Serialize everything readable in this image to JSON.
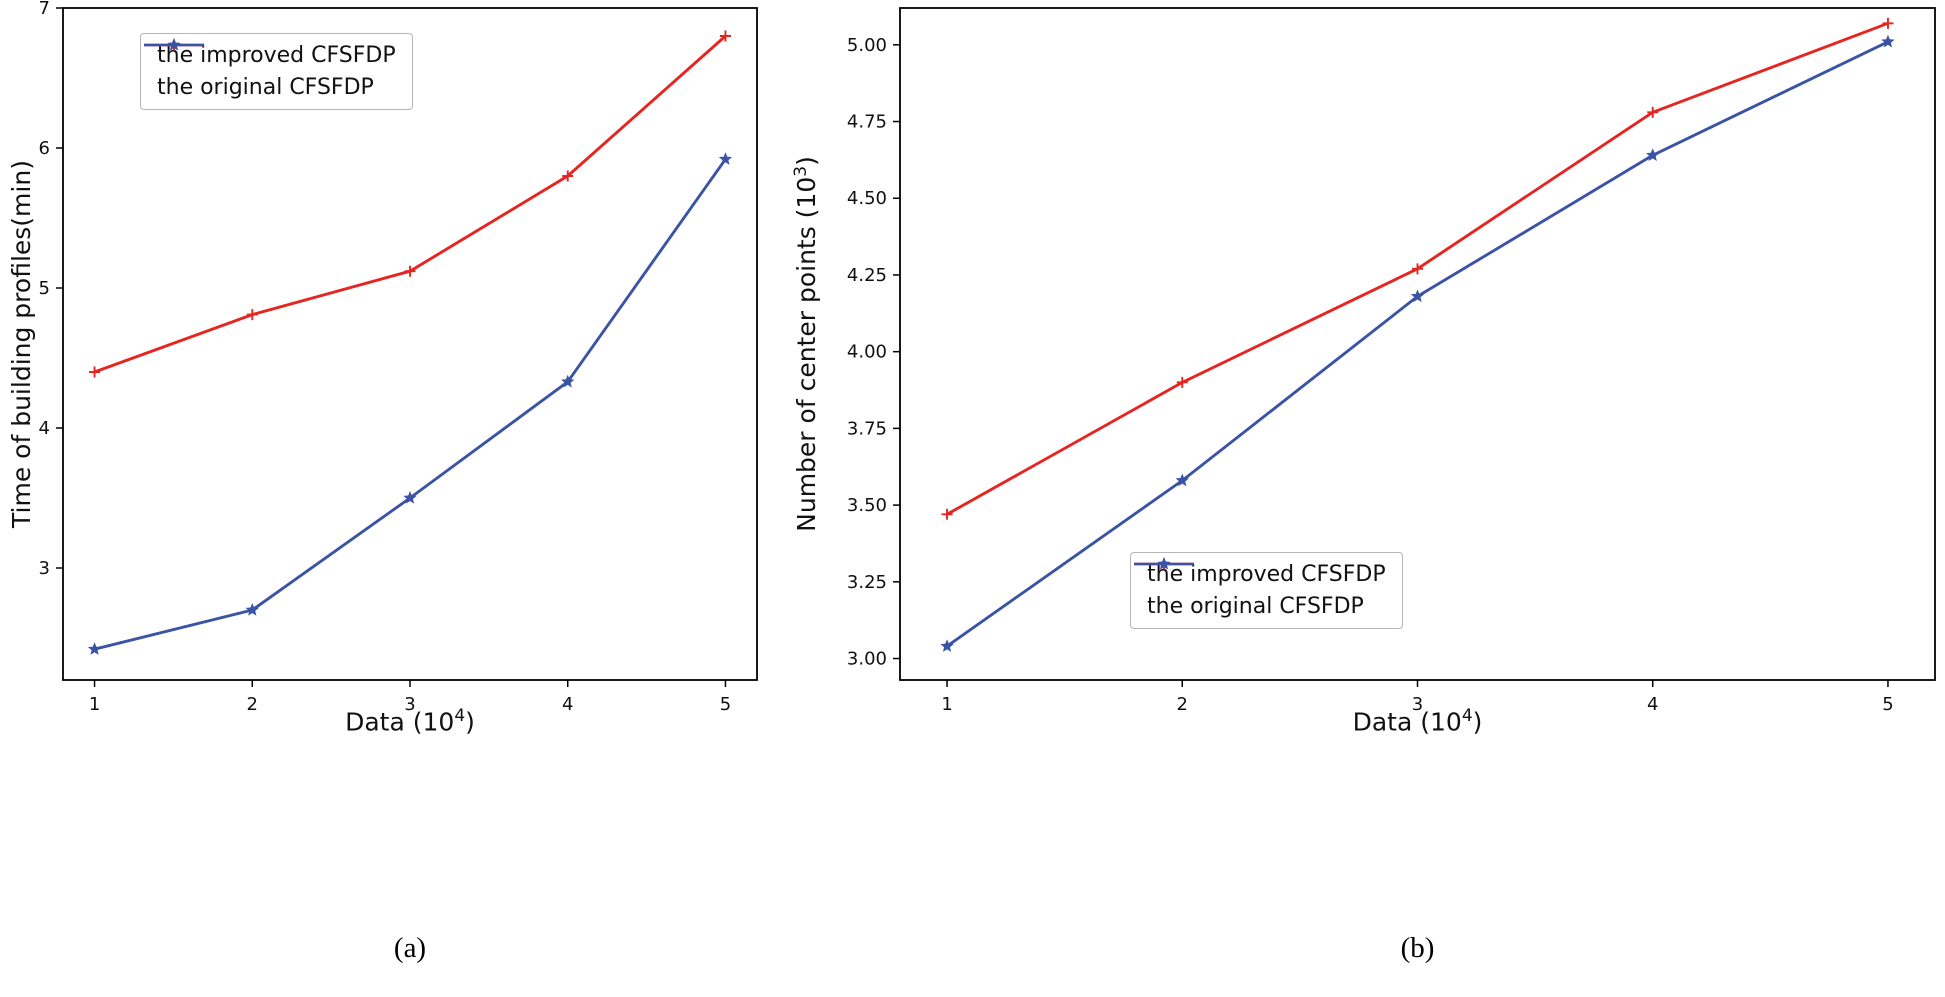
{
  "figure": {
    "background": "#ffffff",
    "axis_color": "#000000",
    "tick_label_color": "#111111"
  },
  "chart_data": [
    {
      "id": "a",
      "type": "line",
      "caption": "(a)",
      "xlabel_pre": "Data (10",
      "xlabel_sup": "4",
      "xlabel_post": ")",
      "ylabel_pre": "Time of building profiles(min)",
      "ylabel_sup": "",
      "ylabel_post": "",
      "x": [
        1,
        2,
        3,
        4,
        5
      ],
      "xlim": [
        0.8,
        5.2
      ],
      "ylim": [
        2.2,
        7.0
      ],
      "xticks": [
        1,
        2,
        3,
        4,
        5
      ],
      "xtick_labels": [
        "1",
        "2",
        "3",
        "4",
        "5"
      ],
      "yticks": [
        3,
        4,
        5,
        6,
        7
      ],
      "ytick_labels": [
        "3",
        "4",
        "5",
        "6",
        "7"
      ],
      "grid": false,
      "legend_position": "upper-left",
      "series": [
        {
          "name": "the improved CFSFDP",
          "color": "#e62420",
          "marker": "plus",
          "values": [
            4.4,
            4.81,
            5.12,
            5.8,
            6.8
          ]
        },
        {
          "name": "the original CFSFDP",
          "color": "#3a53a4",
          "marker": "star",
          "values": [
            2.42,
            2.7,
            3.5,
            4.33,
            5.92
          ]
        }
      ]
    },
    {
      "id": "b",
      "type": "line",
      "caption": "(b)",
      "xlabel_pre": "Data (10",
      "xlabel_sup": "4",
      "xlabel_post": ")",
      "ylabel_pre": "Number of center points (10",
      "ylabel_sup": "3",
      "ylabel_post": ")",
      "x": [
        1,
        2,
        3,
        4,
        5
      ],
      "xlim": [
        0.8,
        5.2
      ],
      "ylim": [
        2.93,
        5.12
      ],
      "xticks": [
        1,
        2,
        3,
        4,
        5
      ],
      "xtick_labels": [
        "1",
        "2",
        "3",
        "4",
        "5"
      ],
      "yticks": [
        3.0,
        3.25,
        3.5,
        3.75,
        4.0,
        4.25,
        4.5,
        4.75,
        5.0
      ],
      "ytick_labels": [
        "3.00",
        "3.25",
        "3.50",
        "3.75",
        "4.00",
        "4.25",
        "4.50",
        "4.75",
        "5.00"
      ],
      "grid": false,
      "legend_position": "lower-right",
      "series": [
        {
          "name": "the improved CFSFDP",
          "color": "#e62420",
          "marker": "plus",
          "values": [
            3.47,
            3.9,
            4.27,
            4.78,
            5.07
          ]
        },
        {
          "name": "the original CFSFDP",
          "color": "#3a53a4",
          "marker": "star",
          "values": [
            3.04,
            3.58,
            4.18,
            4.64,
            5.01
          ]
        }
      ]
    }
  ]
}
